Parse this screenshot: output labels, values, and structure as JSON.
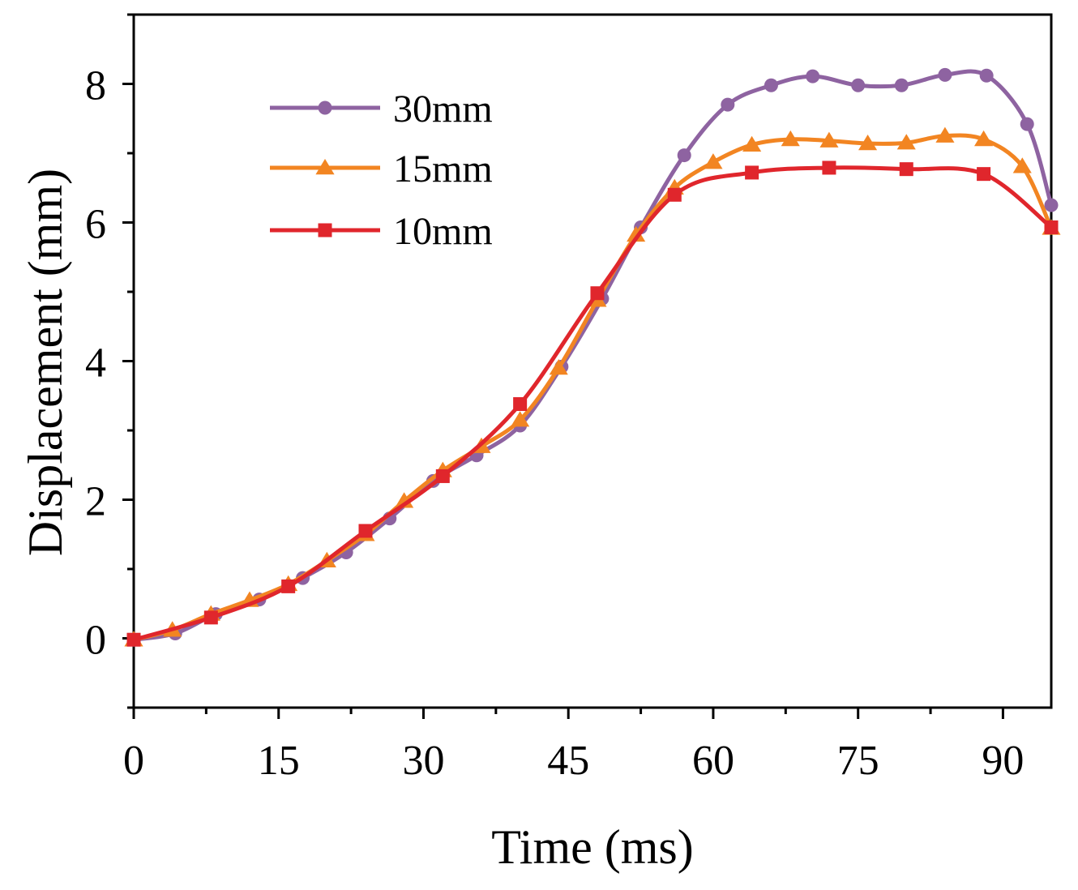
{
  "chart_data": {
    "type": "line",
    "title": "",
    "xlabel": "Time (ms)",
    "ylabel": "Displacement (mm)",
    "xlim": [
      0,
      95
    ],
    "ylim": [
      -1,
      9
    ],
    "xticks": [
      0,
      15,
      30,
      45,
      60,
      75,
      90
    ],
    "xtick_labels": [
      "0",
      "15",
      "30",
      "45",
      "60",
      "75",
      "90"
    ],
    "yticks": [
      0,
      2,
      4,
      6,
      8
    ],
    "ytick_labels": [
      "0",
      "2",
      "4",
      "6",
      "8"
    ],
    "grid": false,
    "legend_position": "top-left",
    "series": [
      {
        "name": "30mm",
        "color": "#8E63A1",
        "marker": "circle",
        "x": [
          0,
          4.3,
          8.5,
          13,
          17.5,
          22,
          26.5,
          31,
          35.5,
          40,
          44.3,
          48.5,
          52.5,
          57,
          61.5,
          66,
          70.3,
          75,
          79.5,
          84,
          88.3,
          92.5,
          95
        ],
        "y": [
          -0.02,
          0.07,
          0.35,
          0.56,
          0.87,
          1.24,
          1.73,
          2.27,
          2.64,
          3.07,
          3.92,
          4.9,
          5.93,
          6.97,
          7.7,
          7.98,
          8.11,
          7.98,
          7.98,
          8.13,
          8.12,
          7.42,
          6.25
        ]
      },
      {
        "name": "15mm",
        "color": "#F28522",
        "marker": "triangle",
        "x": [
          0,
          4,
          8,
          12,
          16,
          20,
          24,
          28,
          32,
          36,
          40,
          44,
          48,
          52,
          56,
          60,
          64,
          68,
          72,
          76,
          80,
          84,
          88,
          92,
          95
        ],
        "y": [
          -0.02,
          0.12,
          0.35,
          0.55,
          0.78,
          1.12,
          1.5,
          1.98,
          2.42,
          2.77,
          3.15,
          3.9,
          4.88,
          5.82,
          6.5,
          6.87,
          7.12,
          7.2,
          7.18,
          7.14,
          7.15,
          7.25,
          7.2,
          6.81,
          5.92
        ]
      },
      {
        "name": "10mm",
        "color": "#E0262C",
        "marker": "square",
        "x": [
          0,
          8,
          16,
          24,
          32,
          40,
          48,
          56,
          64,
          72,
          80,
          88,
          95
        ],
        "y": [
          -0.02,
          0.3,
          0.75,
          1.55,
          2.34,
          3.38,
          4.98,
          6.4,
          6.72,
          6.79,
          6.77,
          6.7,
          5.93
        ]
      }
    ]
  }
}
